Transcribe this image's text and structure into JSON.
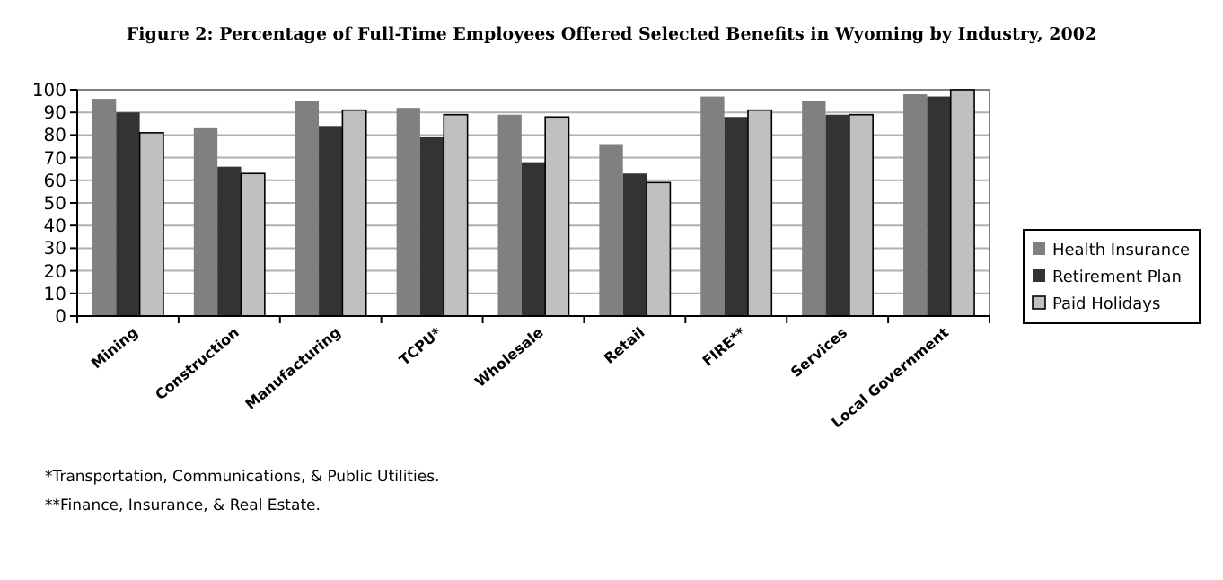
{
  "chart_data": {
    "type": "bar",
    "title": "Figure 2: Percentage of Full-Time Employees Offered Selected Benefits in Wyoming by Industry, 2002",
    "categories": [
      "Mining",
      "Construction",
      "Manufacturing",
      "TCPU*",
      "Wholesale",
      "Retail",
      "FIRE**",
      "Services",
      "Local Government"
    ],
    "series": [
      {
        "name": "Health Insurance",
        "color": "#808080",
        "values": [
          96,
          83,
          95,
          92,
          89,
          76,
          97,
          95,
          98
        ]
      },
      {
        "name": "Retirement Plan",
        "color": "#333333",
        "values": [
          90,
          66,
          84,
          79,
          68,
          63,
          88,
          89,
          97
        ]
      },
      {
        "name": "Paid Holidays",
        "color": "#c0c0c0",
        "values": [
          81,
          63,
          91,
          89,
          88,
          59,
          91,
          89,
          100
        ]
      }
    ],
    "ylim": [
      0,
      100
    ],
    "yticks": [
      0,
      10,
      20,
      30,
      40,
      50,
      60,
      70,
      80,
      90,
      100
    ],
    "grid": "y",
    "legend": "right",
    "annotations": [
      "*Transportation, Communications, & Public Utilities.",
      "**Finance, Insurance, & Real Estate."
    ]
  }
}
